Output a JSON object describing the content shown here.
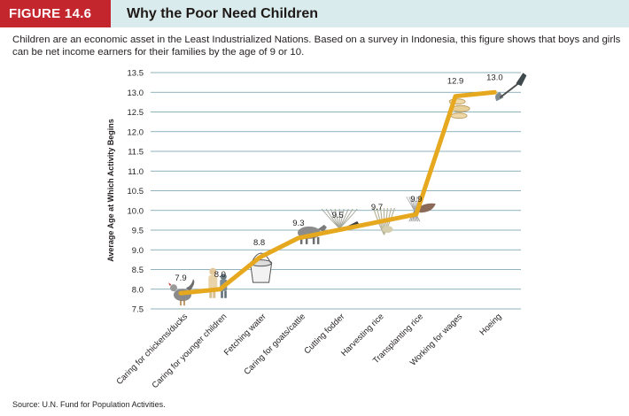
{
  "figure": {
    "label": "FIGURE 14.6",
    "title": "Why the Poor Need Children",
    "caption": "Children are an economic asset in the Least Industrialized Nations. Based on a survey in Indonesia, this figure shows that boys and girls can be net income earners for their families by the age of 9 or 10.",
    "source": "Source: U.N. Fund for Population Activities."
  },
  "colors": {
    "header_bg": "#d9ebed",
    "label_bg": "#c4262e",
    "line": "#e6a81e",
    "grid": "#6d9aa6"
  },
  "chart_data": {
    "type": "line",
    "title": "Why the Poor Need Children",
    "xlabel": "",
    "ylabel": "Average Age at Which Activity Begins",
    "ylim": [
      7.5,
      13.5
    ],
    "yticks": [
      7.5,
      8.0,
      8.5,
      9.0,
      9.5,
      10.0,
      10.5,
      11.0,
      11.5,
      12.0,
      12.5,
      13.0,
      13.5
    ],
    "ytick_labels": [
      "7.5",
      "8.0",
      "8.5",
      "9.0",
      "9.5",
      "10.0",
      "10.5",
      "11.0",
      "11.5",
      "12.0",
      "12.5",
      "13.0",
      "13.5"
    ],
    "grid": true,
    "categories": [
      "Caring for chickens/ducks",
      "Caring for younger children",
      "Fetching water",
      "Caring for goats/cattle",
      "Cutting fodder",
      "Harvesting rice",
      "Transplanting rice",
      "Working for wages",
      "Hoeing"
    ],
    "values": [
      7.9,
      8.0,
      8.8,
      9.3,
      9.5,
      9.7,
      9.9,
      12.9,
      13.0
    ],
    "value_labels": [
      "7.9",
      "8.0",
      "8.8",
      "9.3",
      "9.5",
      "9.7",
      "9.9",
      "12.9",
      "13.0"
    ],
    "icons": [
      "chicken-icon",
      "children-icon",
      "bucket-icon",
      "goat-icon",
      "fodder-icon",
      "rice-sheaf-icon",
      "seedling-icon",
      "money-icon",
      "hoe-icon"
    ]
  }
}
